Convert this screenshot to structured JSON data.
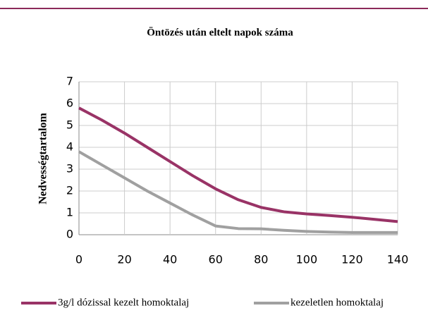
{
  "chart_data": {
    "type": "line",
    "title": "Öntözés után eltelt napok száma",
    "y_label": "Nedvességtartalom",
    "x": [
      0,
      10,
      20,
      30,
      40,
      50,
      60,
      70,
      80,
      90,
      100,
      110,
      120,
      130,
      140
    ],
    "series": [
      {
        "name": "3g/l dózissal kezelt homoktalaj",
        "color": "#993366",
        "values": [
          5.8,
          5.25,
          4.65,
          4.0,
          3.35,
          2.7,
          2.1,
          1.6,
          1.25,
          1.05,
          0.95,
          0.88,
          0.8,
          0.7,
          0.6
        ]
      },
      {
        "name": "kezeletlen homoktalaj",
        "color": "#a0a0a0",
        "values": [
          3.8,
          3.2,
          2.6,
          2.0,
          1.45,
          0.9,
          0.4,
          0.28,
          0.27,
          0.2,
          0.15,
          0.12,
          0.1,
          0.1,
          0.1
        ]
      }
    ],
    "xlim": [
      0,
      140
    ],
    "xticks": [
      0,
      20,
      40,
      60,
      80,
      100,
      120,
      140
    ],
    "ylim": [
      0,
      7
    ],
    "yticks": [
      0,
      1,
      2,
      3,
      4,
      5,
      6,
      7
    ],
    "grid": true,
    "legend": "bottom"
  }
}
